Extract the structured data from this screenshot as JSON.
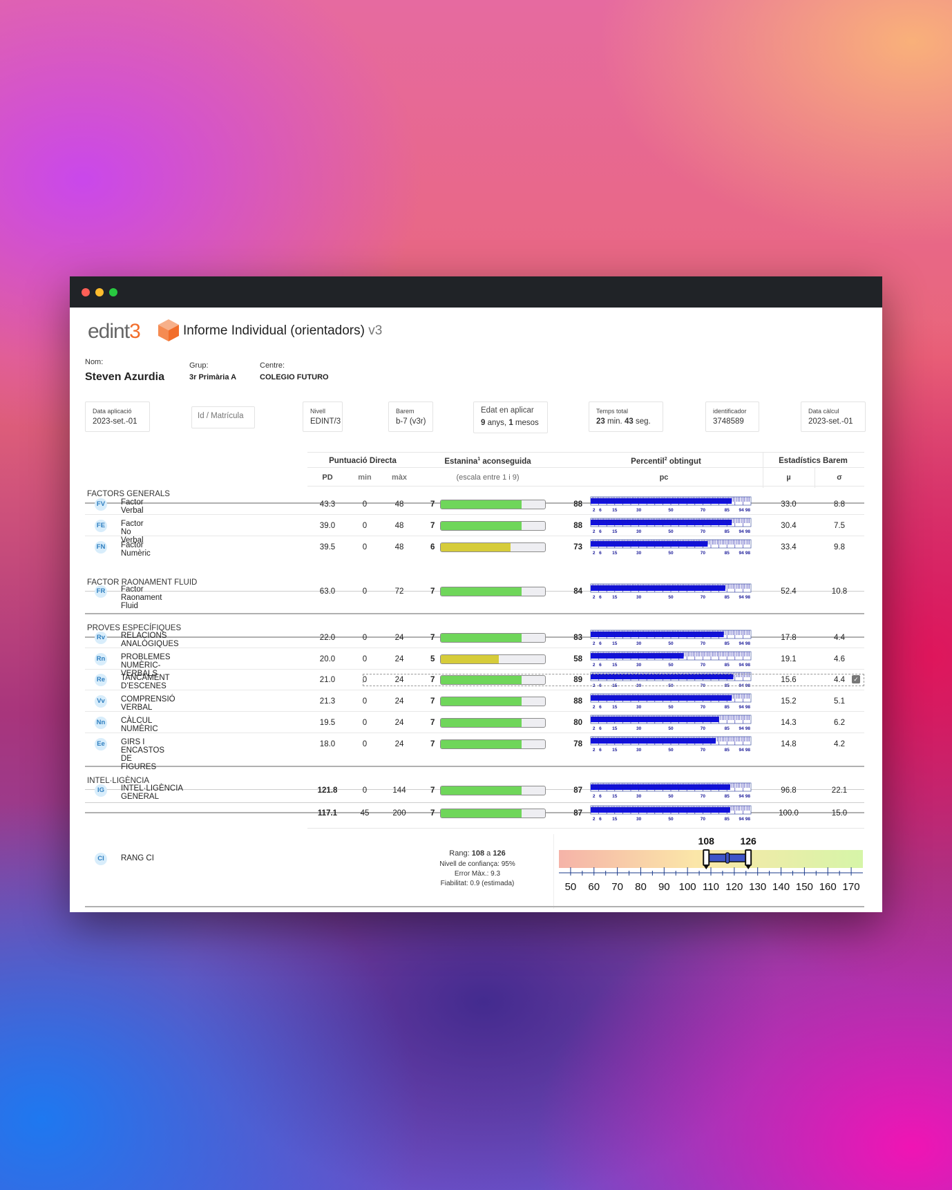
{
  "app": {
    "brand": "edint",
    "brand_suffix": "3",
    "title": "Informe Individual (orientadors)",
    "version": "v3"
  },
  "student": {
    "name_label": "Nom:",
    "name": "Steven Azurdia",
    "group_label": "Grup:",
    "group": "3r Primària A",
    "center_label": "Centre:",
    "center": "COLEGIO FUTURO"
  },
  "info": {
    "data_aplicacio": {
      "label": "Data aplicació",
      "value": "2023-set.-01"
    },
    "id_placeholder": "Id / Matrícula",
    "nivell": {
      "label": "Nivell",
      "value": "EDINT/3"
    },
    "barem": {
      "label": "Barem",
      "value": "b-7 (v3r)"
    },
    "edat": {
      "label": "Edat en aplicar",
      "years": "9",
      "years_unit": "anys,",
      "months": "1",
      "months_unit": "mesos"
    },
    "temps": {
      "label": "Temps total",
      "min": "23",
      "min_unit": "min.",
      "sec": "43",
      "sec_unit": "seg."
    },
    "identificador": {
      "label": "identificador",
      "value": "3748589"
    },
    "data_calcul": {
      "label": "Data càlcul",
      "value": "2023-set.-01"
    }
  },
  "headers": {
    "pd_group": "Puntuació Directa",
    "estanina_pre": "Estanina",
    "estanina_sup": "1",
    "estanina_post": " aconseguida",
    "percentil_pre": "Percentil",
    "percentil_sup": "2",
    "percentil_post": " obtingut",
    "stats": "Estadístics Barem",
    "pd": "PD",
    "min": "min",
    "max": "màx",
    "estanina_sub": "(escala entre 1 i 9)",
    "pc": "pc",
    "mu": "µ",
    "sigma": "σ"
  },
  "percentile_ticks": [
    "2",
    "6",
    "15",
    "30",
    "50",
    "70",
    "85",
    "94",
    "98"
  ],
  "sections": {
    "s1": "FACTORS GENERALS",
    "s2": "FACTOR RAONAMENT FLUID",
    "s3": "PROVES ESPECÍFIQUES",
    "s4": "INTEL·LIGÈNCIA"
  },
  "rows": [
    {
      "code": "FV",
      "name": "Factor Verbal",
      "pd": "43.3",
      "min": "0",
      "max": "48",
      "stanine": "7",
      "pc": "88",
      "mu": "33.0",
      "sigma": "8.8",
      "color": "#6fd65a"
    },
    {
      "code": "FE",
      "name": "Factor No Verbal",
      "pd": "39.0",
      "min": "0",
      "max": "48",
      "stanine": "7",
      "pc": "88",
      "mu": "30.4",
      "sigma": "7.5",
      "color": "#6fd65a"
    },
    {
      "code": "FN",
      "name": "Factor Numèric",
      "pd": "39.5",
      "min": "0",
      "max": "48",
      "stanine": "6",
      "pc": "73",
      "mu": "33.4",
      "sigma": "9.8",
      "color": "#d6cc3a"
    },
    {
      "code": "FR",
      "name": "Factor Raonament Fluid",
      "pd": "63.0",
      "min": "0",
      "max": "72",
      "stanine": "7",
      "pc": "84",
      "mu": "52.4",
      "sigma": "10.8",
      "color": "#6fd65a"
    },
    {
      "code": "Rv",
      "name": "RELACIONS ANALÒGIQUES",
      "pd": "22.0",
      "min": "0",
      "max": "24",
      "stanine": "7",
      "pc": "83",
      "mu": "17.8",
      "sigma": "4.4",
      "color": "#6fd65a"
    },
    {
      "code": "Rn",
      "name": "PROBLEMES NUMÈRIC-VERBALS",
      "pd": "20.0",
      "min": "0",
      "max": "24",
      "stanine": "5",
      "pc": "58",
      "mu": "19.1",
      "sigma": "4.6",
      "color": "#d6cc3a"
    },
    {
      "code": "Re",
      "name": "TANCAMENT D’ESCENES",
      "pd": "21.0",
      "min": "0",
      "max": "24",
      "stanine": "7",
      "pc": "89",
      "mu": "15.6",
      "sigma": "4.4",
      "color": "#6fd65a"
    },
    {
      "code": "Vv",
      "name": "COMPRENSIÓ VERBAL",
      "pd": "21.3",
      "min": "0",
      "max": "24",
      "stanine": "7",
      "pc": "88",
      "mu": "15.2",
      "sigma": "5.1",
      "color": "#6fd65a"
    },
    {
      "code": "Nn",
      "name": "CÀLCUL NUMÈRIC",
      "pd": "19.5",
      "min": "0",
      "max": "24",
      "stanine": "7",
      "pc": "80",
      "mu": "14.3",
      "sigma": "6.2",
      "color": "#6fd65a"
    },
    {
      "code": "Ee",
      "name": "GIRS I ENCASTOS DE FIGURES",
      "pd": "18.0",
      "min": "0",
      "max": "24",
      "stanine": "7",
      "pc": "78",
      "mu": "14.8",
      "sigma": "4.2",
      "color": "#6fd65a"
    },
    {
      "code": "IG",
      "name": "INTEL·LIGÈNCIA GENERAL",
      "pd": "121.8",
      "min": "0",
      "max": "144",
      "stanine": "7",
      "pc": "87",
      "mu": "96.8",
      "sigma": "22.1",
      "color": "#6fd65a"
    },
    {
      "code": "",
      "name": "",
      "pd": "117.1",
      "min": "45",
      "max": "200",
      "stanine": "7",
      "pc": "87",
      "mu": "100.0",
      "sigma": "15.0",
      "color": "#6fd65a"
    }
  ],
  "ci": {
    "code": "CI",
    "name": "RANG CI",
    "rang_label": "Rang:",
    "low": "108",
    "a": "a",
    "high": "126",
    "confianca": "Nivell de confiança: 95%",
    "error": "Error Màx.: 9.3",
    "fiabilitat": "Fiabilitat: 0.9 (estimada)",
    "scale_min": 45,
    "scale_max": 175,
    "range_low": 108,
    "range_high": 126,
    "center": 117.1,
    "ticks": [
      "50",
      "60",
      "70",
      "80",
      "90",
      "100",
      "110",
      "120",
      "130",
      "140",
      "150",
      "160",
      "170"
    ]
  },
  "colors": {
    "stanine_high": "#6fd65a",
    "stanine_mid": "#d6cc3a",
    "percentile": "#1010e0",
    "accent": "#f26d2a"
  }
}
